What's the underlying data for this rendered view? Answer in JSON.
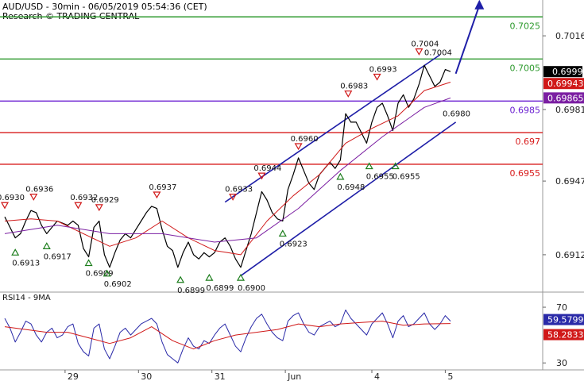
{
  "header": {
    "line1": "AUD/USD - 30min - 06/05/2019 05:54:36 (CET)",
    "line2": "Research © TRADING CENTRAL"
  },
  "indicator": {
    "label": "RSI14 - 9MA"
  },
  "colors": {
    "price": "#000000",
    "ma_fast": "#d01818",
    "ma_slow": "#7b1fa2",
    "channel": "#1f1fa8",
    "resistance": "#2e9a2e",
    "pivot": "#6a1fd1",
    "support": "#d81b1b",
    "arrow": "#1f1fa8",
    "rsi": "#2a2aa8",
    "rsi_ma": "#d01818"
  },
  "chart_data": [
    {
      "type": "line",
      "panel": "price",
      "ylim": [
        0.6895,
        0.703
      ],
      "y_ticks": [
        "0.7016",
        "0.6981",
        "0.6947",
        "0.6912"
      ],
      "x_ticks": [
        "29",
        "30",
        "31",
        "Jun",
        "4",
        "5"
      ],
      "current_price_label": "0.6999",
      "price_labels": [
        {
          "text": "0.69943",
          "color": "#d01818"
        },
        {
          "text": "0.69865",
          "color": "#7b1fa2"
        }
      ],
      "levels": [
        {
          "value": 0.7025,
          "label": "0.7025",
          "kind": "resistance"
        },
        {
          "value": 0.7005,
          "label": "0.7005",
          "kind": "resistance"
        },
        {
          "value": 0.6985,
          "label": "0.6985",
          "kind": "pivot"
        },
        {
          "value": 0.697,
          "label": "0.697",
          "kind": "support"
        },
        {
          "value": 0.6955,
          "label": "0.6955",
          "kind": "support"
        }
      ],
      "annotations": [
        {
          "text": "0.6930",
          "x": 0.0,
          "y": 0.6933,
          "mark": "down"
        },
        {
          "text": "0.6936",
          "x": 5.5,
          "y": 0.6937,
          "mark": "down"
        },
        {
          "text": "0.6913",
          "x": 2.0,
          "y": 0.6916,
          "mark": "up"
        },
        {
          "text": "0.6917",
          "x": 8.0,
          "y": 0.6919,
          "mark": "up"
        },
        {
          "text": "0.6932",
          "x": 14.0,
          "y": 0.6933,
          "mark": "down"
        },
        {
          "text": "0.6929",
          "x": 18.0,
          "y": 0.6932,
          "mark": "down"
        },
        {
          "text": "0.6909",
          "x": 16.0,
          "y": 0.6911,
          "mark": "up"
        },
        {
          "text": "0.6902",
          "x": 19.5,
          "y": 0.6906,
          "mark": "up"
        },
        {
          "text": "0.6937",
          "x": 29.0,
          "y": 0.6938,
          "mark": "down"
        },
        {
          "text": "0.6899",
          "x": 33.5,
          "y": 0.6903,
          "mark": "up"
        },
        {
          "text": "0.6899",
          "x": 39.0,
          "y": 0.6904,
          "mark": "up"
        },
        {
          "text": "0.6933",
          "x": 43.5,
          "y": 0.6937,
          "mark": "down"
        },
        {
          "text": "0.6900",
          "x": 45.0,
          "y": 0.6904,
          "mark": "up"
        },
        {
          "text": "0.6944",
          "x": 49.0,
          "y": 0.6947,
          "mark": "down"
        },
        {
          "text": "0.6923",
          "x": 53.0,
          "y": 0.6925,
          "mark": "up"
        },
        {
          "text": "0.6960",
          "x": 56.0,
          "y": 0.6961,
          "mark": "down"
        },
        {
          "text": "0.6948",
          "x": 64.0,
          "y": 0.6952,
          "mark": "up"
        },
        {
          "text": "0.6983",
          "x": 65.5,
          "y": 0.6986,
          "mark": "down"
        },
        {
          "text": "0.6955",
          "x": 69.5,
          "y": 0.6957,
          "mark": "up"
        },
        {
          "text": "0.6993",
          "x": 71.0,
          "y": 0.6994,
          "mark": "down"
        },
        {
          "text": "0.6955",
          "x": 74.5,
          "y": 0.6957,
          "mark": "up"
        },
        {
          "text": "0.7004",
          "x": 79.0,
          "y": 0.7006,
          "mark": "down"
        },
        {
          "text": "0.7004",
          "x": 81.5,
          "y": 0.7006,
          "mark": "none"
        },
        {
          "text": "0.6980",
          "x": 85.0,
          "y": 0.6977,
          "mark": "none"
        }
      ],
      "series": [
        {
          "name": "",
          "role": "price",
          "x": [
            0,
            1,
            2,
            3,
            4,
            5,
            6,
            7,
            8,
            9,
            10,
            11,
            12,
            13,
            14,
            15,
            16,
            17,
            18,
            19,
            20,
            21,
            22,
            23,
            24,
            25,
            26,
            27,
            28,
            29,
            30,
            31,
            32,
            33,
            34,
            35,
            36,
            37,
            38,
            39,
            40,
            41,
            42,
            43,
            44,
            45,
            46,
            47,
            48,
            49,
            50,
            51,
            52,
            53,
            54,
            55,
            56,
            57,
            58,
            59,
            60,
            61,
            62,
            63,
            64,
            65,
            66,
            67,
            68,
            69,
            70,
            71,
            72,
            73,
            74,
            75,
            76,
            77,
            78,
            79,
            80,
            81,
            82,
            83,
            84,
            85
          ],
          "y": [
            0.693,
            0.6925,
            0.692,
            0.6922,
            0.6928,
            0.6933,
            0.6932,
            0.6926,
            0.6922,
            0.6925,
            0.6928,
            0.6927,
            0.6926,
            0.6928,
            0.6926,
            0.6915,
            0.6911,
            0.6925,
            0.6928,
            0.6912,
            0.6906,
            0.6913,
            0.6919,
            0.6922,
            0.692,
            0.6924,
            0.6928,
            0.6932,
            0.6935,
            0.6934,
            0.6924,
            0.6916,
            0.6914,
            0.6906,
            0.6913,
            0.6918,
            0.6912,
            0.691,
            0.6913,
            0.6911,
            0.6913,
            0.6918,
            0.692,
            0.6916,
            0.691,
            0.6906,
            0.6914,
            0.6922,
            0.6932,
            0.6942,
            0.6938,
            0.6932,
            0.6929,
            0.6928,
            0.6943,
            0.695,
            0.6958,
            0.6952,
            0.6946,
            0.6943,
            0.695,
            0.6953,
            0.6956,
            0.6953,
            0.6957,
            0.6979,
            0.6975,
            0.6975,
            0.697,
            0.6965,
            0.6975,
            0.6982,
            0.6984,
            0.6978,
            0.6971,
            0.6984,
            0.6988,
            0.6982,
            0.6986,
            0.6993,
            0.7002,
            0.6997,
            0.6992,
            0.6994,
            0.7,
            0.6999
          ]
        },
        {
          "name": "",
          "role": "ma_fast",
          "x": [
            0,
            5,
            10,
            15,
            20,
            25,
            30,
            35,
            40,
            45,
            50,
            55,
            60,
            65,
            70,
            75,
            80,
            85
          ],
          "y": [
            0.6928,
            0.6929,
            0.6928,
            0.6922,
            0.6916,
            0.692,
            0.6928,
            0.692,
            0.6914,
            0.6912,
            0.6928,
            0.694,
            0.695,
            0.6965,
            0.6972,
            0.6978,
            0.699,
            0.6994
          ]
        },
        {
          "name": "",
          "role": "ma_slow",
          "x": [
            0,
            10,
            20,
            30,
            40,
            48,
            56,
            64,
            72,
            80,
            85
          ],
          "y": [
            0.6922,
            0.6926,
            0.6922,
            0.6922,
            0.6918,
            0.692,
            0.6934,
            0.6952,
            0.6968,
            0.6982,
            0.69865
          ]
        }
      ],
      "channel": {
        "upper": {
          "x": [
            42.0,
            83.0
          ],
          "y": [
            0.6937,
            0.7007
          ]
        },
        "lower": {
          "x": [
            45.0,
            86.0
          ],
          "y": [
            0.6902,
            0.6975
          ]
        }
      },
      "projection_arrow": {
        "x": [
          86.0,
          90.5
        ],
        "y": [
          0.6998,
          0.7032
        ]
      }
    },
    {
      "type": "line",
      "panel": "rsi",
      "title": "RSI14 - 9MA",
      "ylim": [
        25,
        78
      ],
      "y_ticks": [
        "70",
        "30"
      ],
      "value_labels": [
        {
          "text": "59.5799",
          "color": "#2a2aa8"
        },
        {
          "text": "58.2833",
          "color": "#d01818"
        }
      ],
      "series": [
        {
          "name": "",
          "role": "rsi",
          "x": [
            0,
            1,
            2,
            3,
            4,
            5,
            6,
            7,
            8,
            9,
            10,
            11,
            12,
            13,
            14,
            15,
            16,
            17,
            18,
            19,
            20,
            21,
            22,
            23,
            24,
            25,
            26,
            27,
            28,
            29,
            30,
            31,
            32,
            33,
            34,
            35,
            36,
            37,
            38,
            39,
            40,
            41,
            42,
            43,
            44,
            45,
            46,
            47,
            48,
            49,
            50,
            51,
            52,
            53,
            54,
            55,
            56,
            57,
            58,
            59,
            60,
            61,
            62,
            63,
            64,
            65,
            66,
            67,
            68,
            69,
            70,
            71,
            72,
            73,
            74,
            75,
            76,
            77,
            78,
            79,
            80,
            81,
            82,
            83,
            84,
            85
          ],
          "y": [
            62,
            55,
            45,
            52,
            60,
            58,
            50,
            45,
            52,
            55,
            48,
            50,
            56,
            58,
            44,
            38,
            35,
            55,
            58,
            40,
            33,
            42,
            52,
            55,
            50,
            54,
            58,
            60,
            62,
            58,
            45,
            36,
            33,
            30,
            40,
            48,
            42,
            40,
            46,
            44,
            50,
            55,
            58,
            50,
            42,
            38,
            48,
            56,
            62,
            65,
            58,
            52,
            48,
            46,
            60,
            64,
            66,
            58,
            52,
            50,
            56,
            58,
            60,
            56,
            58,
            68,
            62,
            58,
            54,
            50,
            58,
            62,
            66,
            58,
            48,
            60,
            64,
            56,
            58,
            62,
            66,
            58,
            54,
            58,
            64,
            60
          ]
        },
        {
          "name": "",
          "role": "rsi_ma",
          "x": [
            0,
            4,
            8,
            12,
            16,
            20,
            24,
            28,
            32,
            36,
            40,
            44,
            48,
            52,
            56,
            60,
            64,
            68,
            72,
            76,
            80,
            85
          ],
          "y": [
            56,
            54,
            52,
            52,
            48,
            44,
            48,
            56,
            46,
            40,
            46,
            50,
            52,
            54,
            58,
            56,
            58,
            59,
            60,
            57,
            58,
            58.3
          ]
        }
      ]
    }
  ]
}
